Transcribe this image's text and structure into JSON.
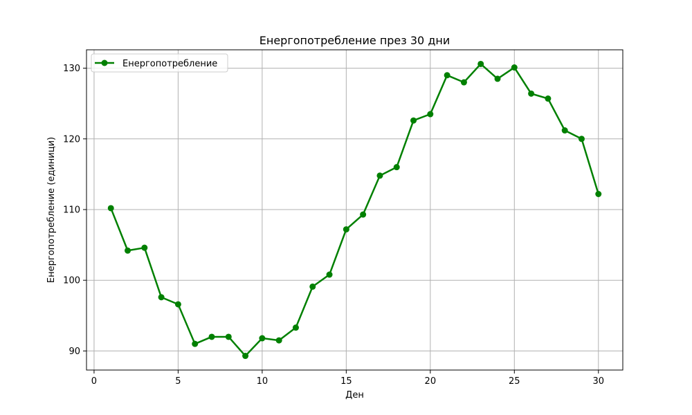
{
  "chart_data": {
    "type": "line",
    "title": "Енергопотребление през 30 дни",
    "xlabel": "Ден",
    "ylabel": "Енергопотребление (единици)",
    "xlim": [
      -0.45,
      31.45
    ],
    "ylim": [
      87.3,
      132.6
    ],
    "xticks": [
      0,
      5,
      10,
      15,
      20,
      25,
      30
    ],
    "yticks": [
      90,
      100,
      110,
      120,
      130
    ],
    "grid": true,
    "legend_position": "upper-left",
    "series": [
      {
        "name": "Енергопотребление",
        "color": "#008000",
        "marker": "circle",
        "x": [
          1,
          2,
          3,
          4,
          5,
          6,
          7,
          8,
          9,
          10,
          11,
          12,
          13,
          14,
          15,
          16,
          17,
          18,
          19,
          20,
          21,
          22,
          23,
          24,
          25,
          26,
          27,
          28,
          29,
          30
        ],
        "y": [
          110.2,
          104.2,
          104.6,
          97.6,
          96.6,
          91.0,
          92.0,
          92.0,
          89.3,
          91.8,
          91.5,
          93.3,
          99.1,
          100.8,
          107.2,
          109.3,
          114.8,
          116.0,
          122.6,
          123.5,
          129.0,
          128.0,
          130.6,
          128.5,
          130.1,
          126.4,
          125.7,
          121.2,
          120.0,
          112.2
        ]
      }
    ]
  }
}
